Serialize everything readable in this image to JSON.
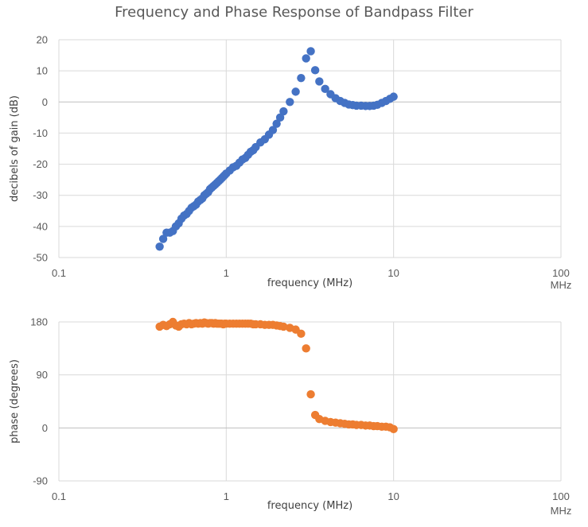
{
  "title": "Frequency and Phase Response of Bandpass Filter",
  "chart_data": [
    {
      "type": "scatter",
      "xscale": "log",
      "xlim": [
        0.1,
        100
      ],
      "ylim": [
        -50,
        20
      ],
      "xticks": [
        "0.1",
        "1",
        "10",
        "100"
      ],
      "yticks": [
        "20",
        "10",
        "0",
        "-10",
        "-20",
        "-30",
        "-40",
        "-50"
      ],
      "xlabel": "frequency (MHz)",
      "xunit": "MHz",
      "ylabel": "decibels of gain (dB)",
      "grid": true,
      "color": "#4472C4",
      "series": [
        {
          "x": [
            0.4,
            0.42,
            0.44,
            0.46,
            0.48,
            0.5,
            0.52,
            0.54,
            0.56,
            0.58,
            0.6,
            0.62,
            0.64,
            0.66,
            0.68,
            0.7,
            0.72,
            0.74,
            0.76,
            0.78,
            0.8,
            0.82,
            0.84,
            0.86,
            0.88,
            0.9,
            0.92,
            0.94,
            0.96,
            0.98,
            1.0,
            1.05,
            1.1,
            1.15,
            1.2,
            1.25,
            1.3,
            1.35,
            1.4,
            1.45,
            1.5,
            1.6,
            1.7,
            1.8,
            1.9,
            2.0,
            2.1,
            2.2,
            2.4,
            2.6,
            2.8,
            3.0,
            3.2,
            3.4,
            3.6,
            3.9,
            4.2,
            4.5,
            4.8,
            5.1,
            5.4,
            5.7,
            6.0,
            6.4,
            6.8,
            7.2,
            7.6,
            8.0,
            8.5,
            9.0,
            9.5,
            10.0
          ],
          "y": [
            -46.5,
            -44,
            -42,
            -42,
            -41.5,
            -40,
            -39,
            -37.5,
            -36.5,
            -36,
            -35,
            -34,
            -33.5,
            -33,
            -32,
            -31.5,
            -31,
            -30,
            -29.5,
            -29,
            -28,
            -27.5,
            -27,
            -26.5,
            -26,
            -25.5,
            -25,
            -24.5,
            -24,
            -23.5,
            -23,
            -22,
            -21,
            -20.5,
            -19.5,
            -18.5,
            -18,
            -17,
            -16,
            -15.5,
            -14.5,
            -13,
            -12,
            -10.5,
            -9,
            -7,
            -5,
            -3,
            0,
            3.3,
            7.7,
            14,
            16.3,
            10.2,
            6.6,
            4.2,
            2.5,
            1.2,
            0.3,
            -0.3,
            -0.8,
            -1,
            -1.2,
            -1.2,
            -1.3,
            -1.3,
            -1.2,
            -0.9,
            -0.3,
            0.3,
            1,
            1.7
          ]
        }
      ]
    },
    {
      "type": "scatter",
      "xscale": "log",
      "xlim": [
        0.1,
        100
      ],
      "ylim": [
        -90,
        180
      ],
      "xticks": [
        "0.1",
        "1",
        "10",
        "100"
      ],
      "yticks": [
        "180",
        "90",
        "0",
        "-90"
      ],
      "xlabel": "frequency (MHz)",
      "xunit": "MHz",
      "ylabel": "phase (degrees)",
      "grid": true,
      "color": "#ED7D31",
      "series": [
        {
          "x": [
            0.4,
            0.42,
            0.44,
            0.46,
            0.48,
            0.5,
            0.52,
            0.54,
            0.56,
            0.58,
            0.6,
            0.62,
            0.64,
            0.66,
            0.68,
            0.7,
            0.72,
            0.74,
            0.76,
            0.78,
            0.8,
            0.82,
            0.84,
            0.86,
            0.88,
            0.9,
            0.92,
            0.94,
            0.96,
            0.98,
            1.0,
            1.05,
            1.1,
            1.15,
            1.2,
            1.25,
            1.3,
            1.35,
            1.4,
            1.45,
            1.5,
            1.6,
            1.7,
            1.8,
            1.9,
            2.0,
            2.1,
            2.2,
            2.4,
            2.6,
            2.8,
            3.0,
            3.2,
            3.4,
            3.6,
            3.9,
            4.2,
            4.5,
            4.8,
            5.1,
            5.4,
            5.7,
            6.0,
            6.4,
            6.8,
            7.2,
            7.6,
            8.0,
            8.5,
            9.0,
            9.5,
            10.0
          ],
          "y": [
            172,
            175,
            173,
            176,
            180,
            174,
            172,
            176,
            177,
            176,
            178,
            176,
            177,
            178,
            177,
            178,
            177,
            179,
            178,
            177,
            178,
            178,
            177,
            178,
            177,
            177,
            177,
            177,
            176,
            177,
            177,
            177,
            177,
            177,
            177,
            177,
            177,
            177,
            177,
            176,
            176,
            176,
            175,
            175,
            175,
            174,
            173,
            172,
            170,
            167,
            160,
            135,
            57,
            22,
            15,
            12,
            10,
            9,
            8,
            7,
            6,
            6,
            5,
            5,
            4,
            4,
            3,
            3,
            2,
            2,
            1,
            -2
          ]
        }
      ]
    }
  ]
}
